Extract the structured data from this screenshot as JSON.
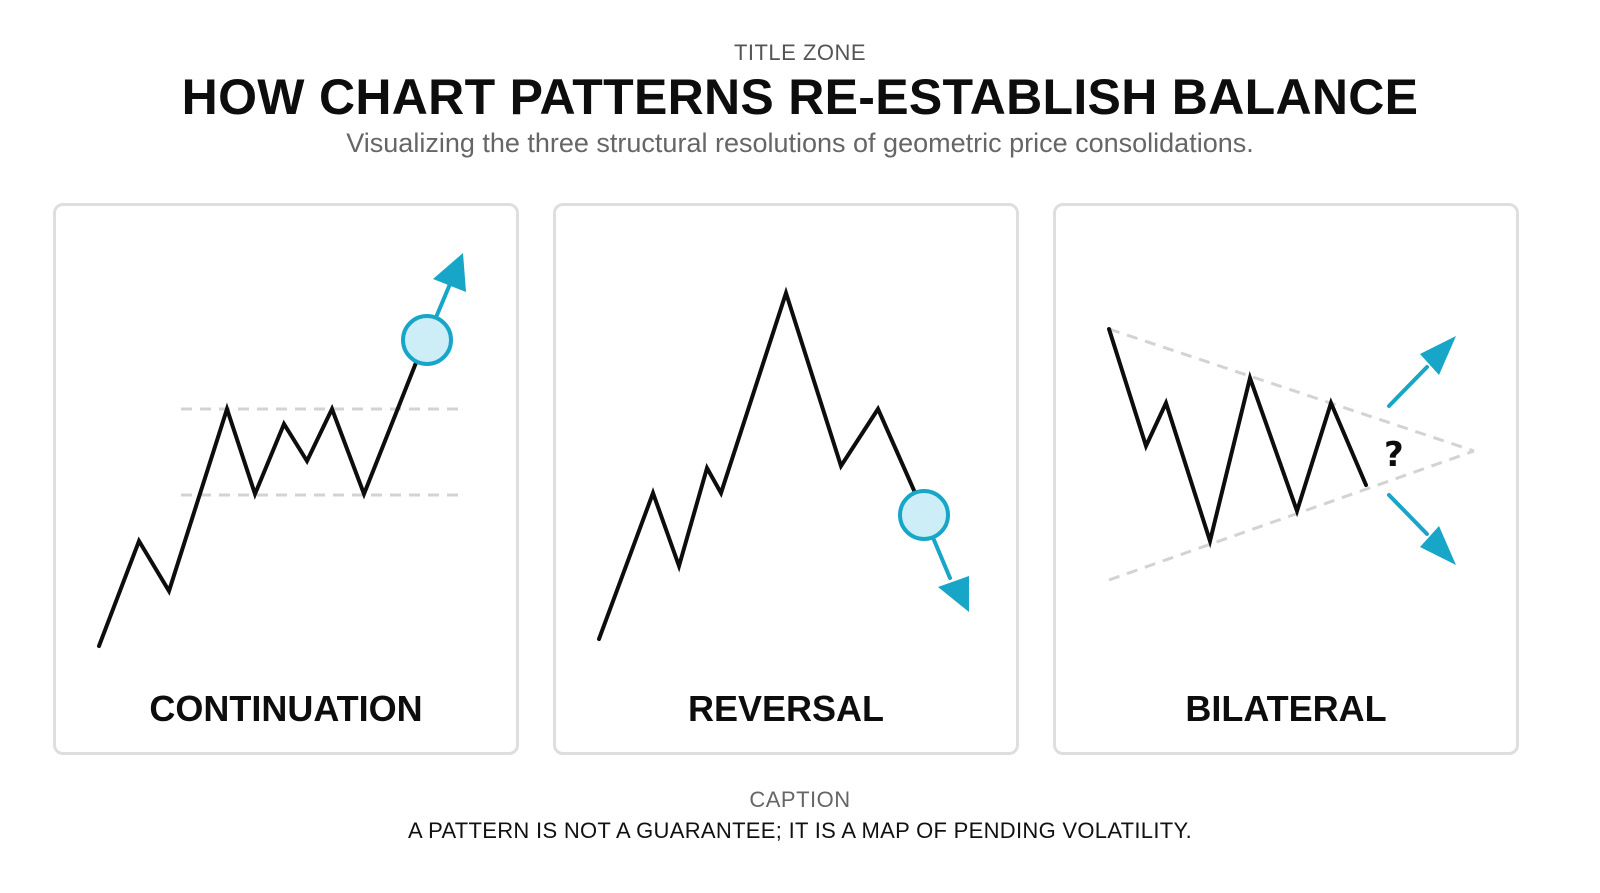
{
  "header": {
    "zone_label": "TITLE ZONE",
    "title": "HOW CHART PATTERNS RE-ESTABLISH BALANCE",
    "subtitle": "Visualizing the three structural resolutions of geometric price consolidations."
  },
  "panels": [
    {
      "label": "CONTINUATION",
      "breakout_direction": "up",
      "icons": [
        "price-path",
        "range-boundary-lines",
        "breakout-circle",
        "up-arrow-icon"
      ]
    },
    {
      "label": "REVERSAL",
      "breakout_direction": "down",
      "icons": [
        "price-path",
        "breakdown-circle",
        "down-arrow-icon"
      ]
    },
    {
      "label": "BILATERAL",
      "breakout_direction": "either",
      "question_mark": "?",
      "icons": [
        "price-path",
        "converging-triangle-lines",
        "up-arrow-icon",
        "down-arrow-icon"
      ]
    }
  ],
  "footer": {
    "caption_label": "CAPTION",
    "caption_text": "A PATTERN IS NOT A GUARANTEE; IT IS A MAP OF PENDING VOLATILITY."
  },
  "colors": {
    "accent": "#17a5c8",
    "accent_fill": "#cdeef6",
    "line": "#0d0d0d",
    "guide": "#d3d3d3",
    "panel_border": "#dedede",
    "muted_text": "#666666"
  }
}
